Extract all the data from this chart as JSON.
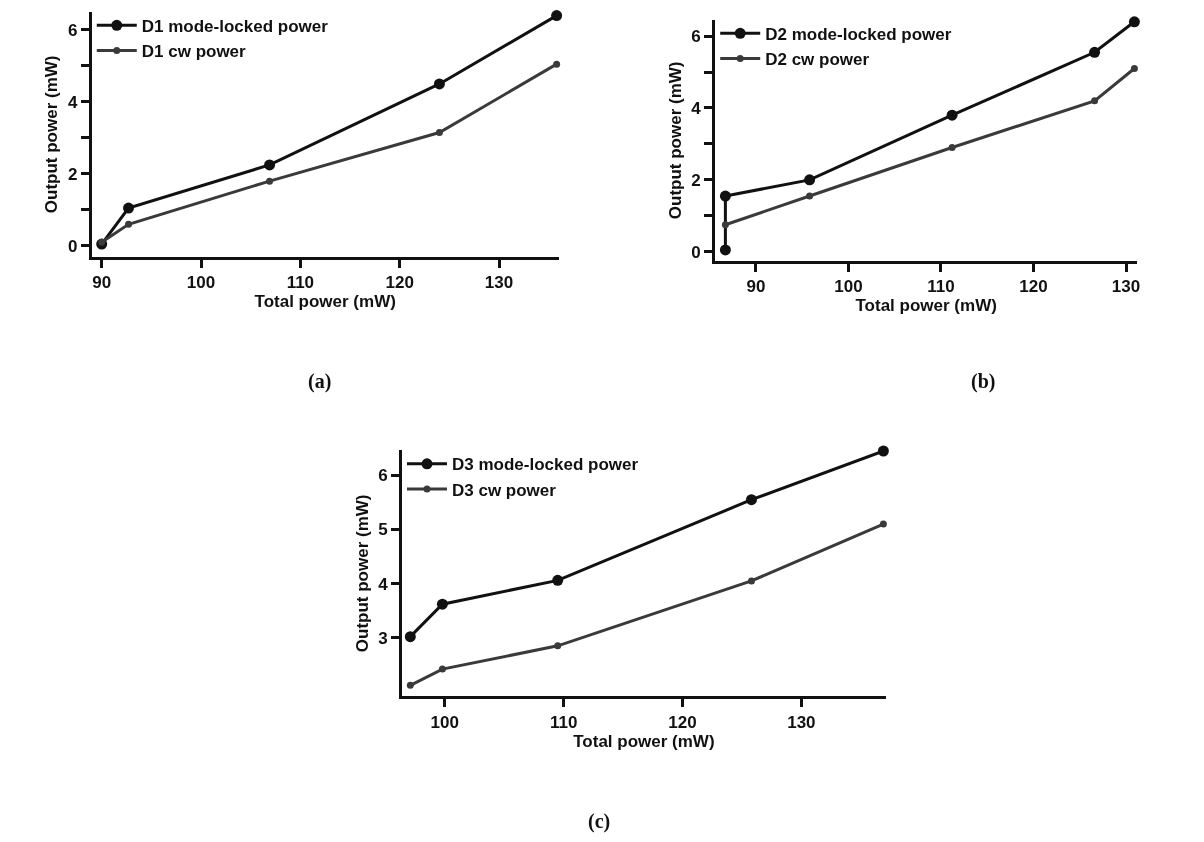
{
  "chart_data": [
    {
      "type": "line",
      "xlabel": "Total power (mW)",
      "ylabel": "Output power (mW)",
      "annotations": [
        "(a)"
      ],
      "marker": "circle",
      "line_style": "solid",
      "legend": "top left",
      "xlim": [
        89.0,
        136.0
      ],
      "xticks": [
        90,
        100,
        110,
        120,
        130
      ],
      "ylim": [
        -0.3,
        6.5
      ],
      "yticks": [
        0,
        {
          "value": 1,
          "label": null
        },
        2,
        {
          "value": 3,
          "label": null
        },
        4,
        {
          "value": 5,
          "label": null
        },
        6
      ],
      "series": [
        {
          "name": "D1 mode-locked power",
          "color": "#111111",
          "x": [
            90.0,
            92.7,
            106.9,
            124.0,
            135.8
          ],
          "values": [
            0.05,
            1.05,
            2.25,
            4.5,
            6.4
          ]
        },
        {
          "name": "D1 cw power",
          "color": "#3a3a3a",
          "x": [
            90.0,
            92.7,
            106.9,
            124.0,
            135.8
          ],
          "values": [
            0.1,
            0.6,
            1.8,
            3.15,
            5.05
          ]
        }
      ]
    },
    {
      "type": "line",
      "xlabel": "Total power (mW)",
      "ylabel": "Output power (mW)",
      "annotations": [
        "(b)"
      ],
      "marker": "circle",
      "line_style": "solid",
      "legend": "top left",
      "xlim": [
        85.6,
        131.2
      ],
      "xticks": [
        90,
        100,
        110,
        120,
        130
      ],
      "ylim": [
        -0.25,
        6.45
      ],
      "yticks": [
        0,
        {
          "value": 1,
          "label": null
        },
        2,
        {
          "value": 3,
          "label": null
        },
        4,
        {
          "value": 5,
          "label": null
        },
        6
      ],
      "series": [
        {
          "name": "D2 mode-locked power",
          "color": "#111111",
          "x": [
            86.7,
            86.7,
            95.8,
            111.2,
            126.6,
            130.9
          ],
          "values": [
            0.05,
            1.55,
            2.0,
            3.8,
            5.55,
            6.4
          ]
        },
        {
          "name": "D2 cw power",
          "color": "#3a3a3a",
          "x": [
            86.7,
            95.8,
            111.2,
            126.6,
            130.9
          ],
          "values": [
            0.75,
            1.55,
            2.9,
            4.2,
            5.1
          ]
        }
      ]
    },
    {
      "type": "line",
      "xlabel": "Total power (mW)",
      "ylabel": "Output power (mW)",
      "annotations": [
        "(c)"
      ],
      "marker": "circle",
      "line_style": "solid",
      "legend": "top left",
      "xlim": [
        96.4,
        137.1
      ],
      "xticks": [
        100,
        110,
        120,
        130
      ],
      "ylim": [
        1.92,
        6.46
      ],
      "yticks": [
        3,
        4,
        5,
        6
      ],
      "series": [
        {
          "name": "D3 mode-locked power",
          "color": "#111111",
          "x": [
            97.1,
            99.8,
            109.5,
            125.8,
            136.9
          ],
          "values": [
            3.02,
            3.62,
            4.06,
            5.55,
            6.45
          ]
        },
        {
          "name": "D3 cw power",
          "color": "#3a3a3a",
          "x": [
            97.1,
            99.8,
            109.5,
            125.8,
            136.9
          ],
          "values": [
            2.12,
            2.42,
            2.85,
            4.05,
            5.1
          ]
        }
      ]
    }
  ]
}
